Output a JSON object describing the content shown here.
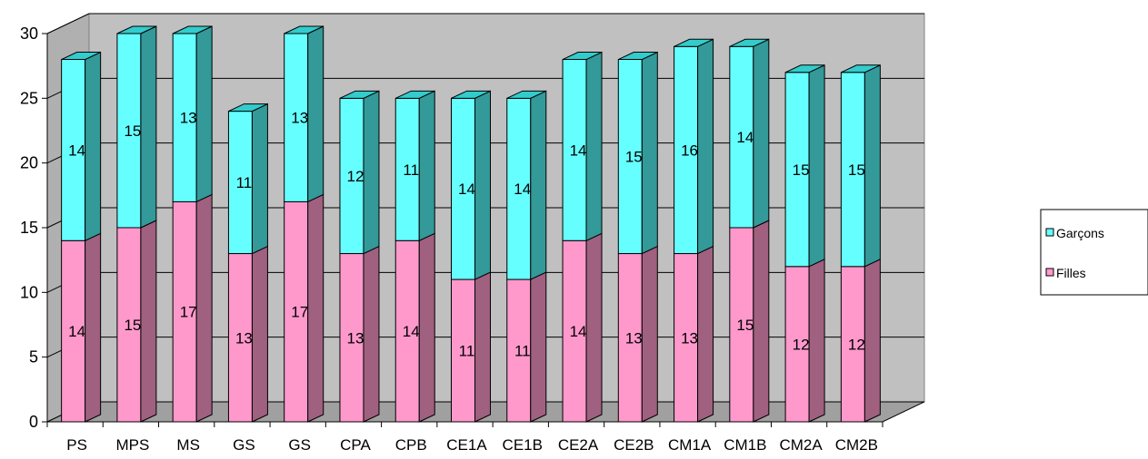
{
  "chart_data": {
    "type": "bar",
    "stacked": true,
    "three_d": true,
    "categories": [
      "PS",
      "MPS",
      "MS",
      "GS",
      "GS",
      "CPA",
      "CPB",
      "CE1A",
      "CE1B",
      "CE2A",
      "CE2B",
      "CM1A",
      "CM1B",
      "CM2A",
      "CM2B"
    ],
    "series": [
      {
        "name": "Filles",
        "values": [
          14,
          15,
          17,
          13,
          17,
          13,
          14,
          11,
          11,
          14,
          13,
          13,
          15,
          12,
          12
        ],
        "color": "#ff99cc",
        "side_color": "#a0607f",
        "top_color": "#d070a0"
      },
      {
        "name": "Garçons",
        "values": [
          14,
          15,
          13,
          11,
          13,
          12,
          11,
          14,
          14,
          14,
          15,
          16,
          14,
          15,
          15
        ],
        "color": "#66ffff",
        "side_color": "#339999",
        "top_color": "#33cccc"
      }
    ],
    "ylim": [
      0,
      30
    ],
    "yticks": [
      "0",
      "5",
      "10",
      "15",
      "20",
      "25",
      "30"
    ],
    "grid": true,
    "legend_position": "right",
    "wall_color": "#c0c0c0",
    "floor_color": "#a0a0a0"
  }
}
